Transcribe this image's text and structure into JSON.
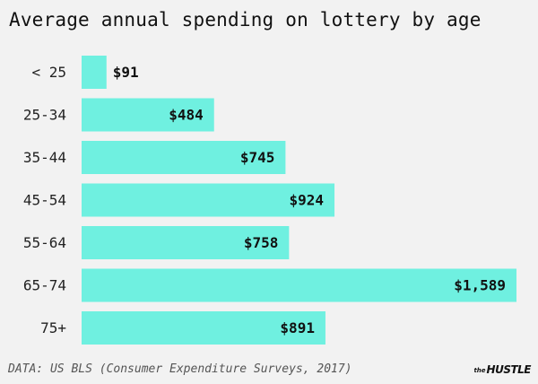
{
  "chart_data": {
    "type": "bar",
    "orientation": "horizontal",
    "title": "Average annual spending on lottery by age",
    "categories": [
      "< 25",
      "25-34",
      "35-44",
      "45-54",
      "55-64",
      "65-74",
      "75+"
    ],
    "values": [
      91,
      484,
      745,
      924,
      758,
      1589,
      891
    ],
    "value_labels": [
      "$91",
      "$484",
      "$745",
      "$924",
      "$758",
      "$1,589",
      "$891"
    ],
    "xlim": [
      0,
      1589
    ],
    "grid": false,
    "legend": "none",
    "bar_color": "#6ff0e0"
  },
  "footer": {
    "source": "DATA: US BLS (Consumer Expenditure Surveys, 2017)",
    "brand_prefix": "the",
    "brand_name": "HUSTLE"
  }
}
